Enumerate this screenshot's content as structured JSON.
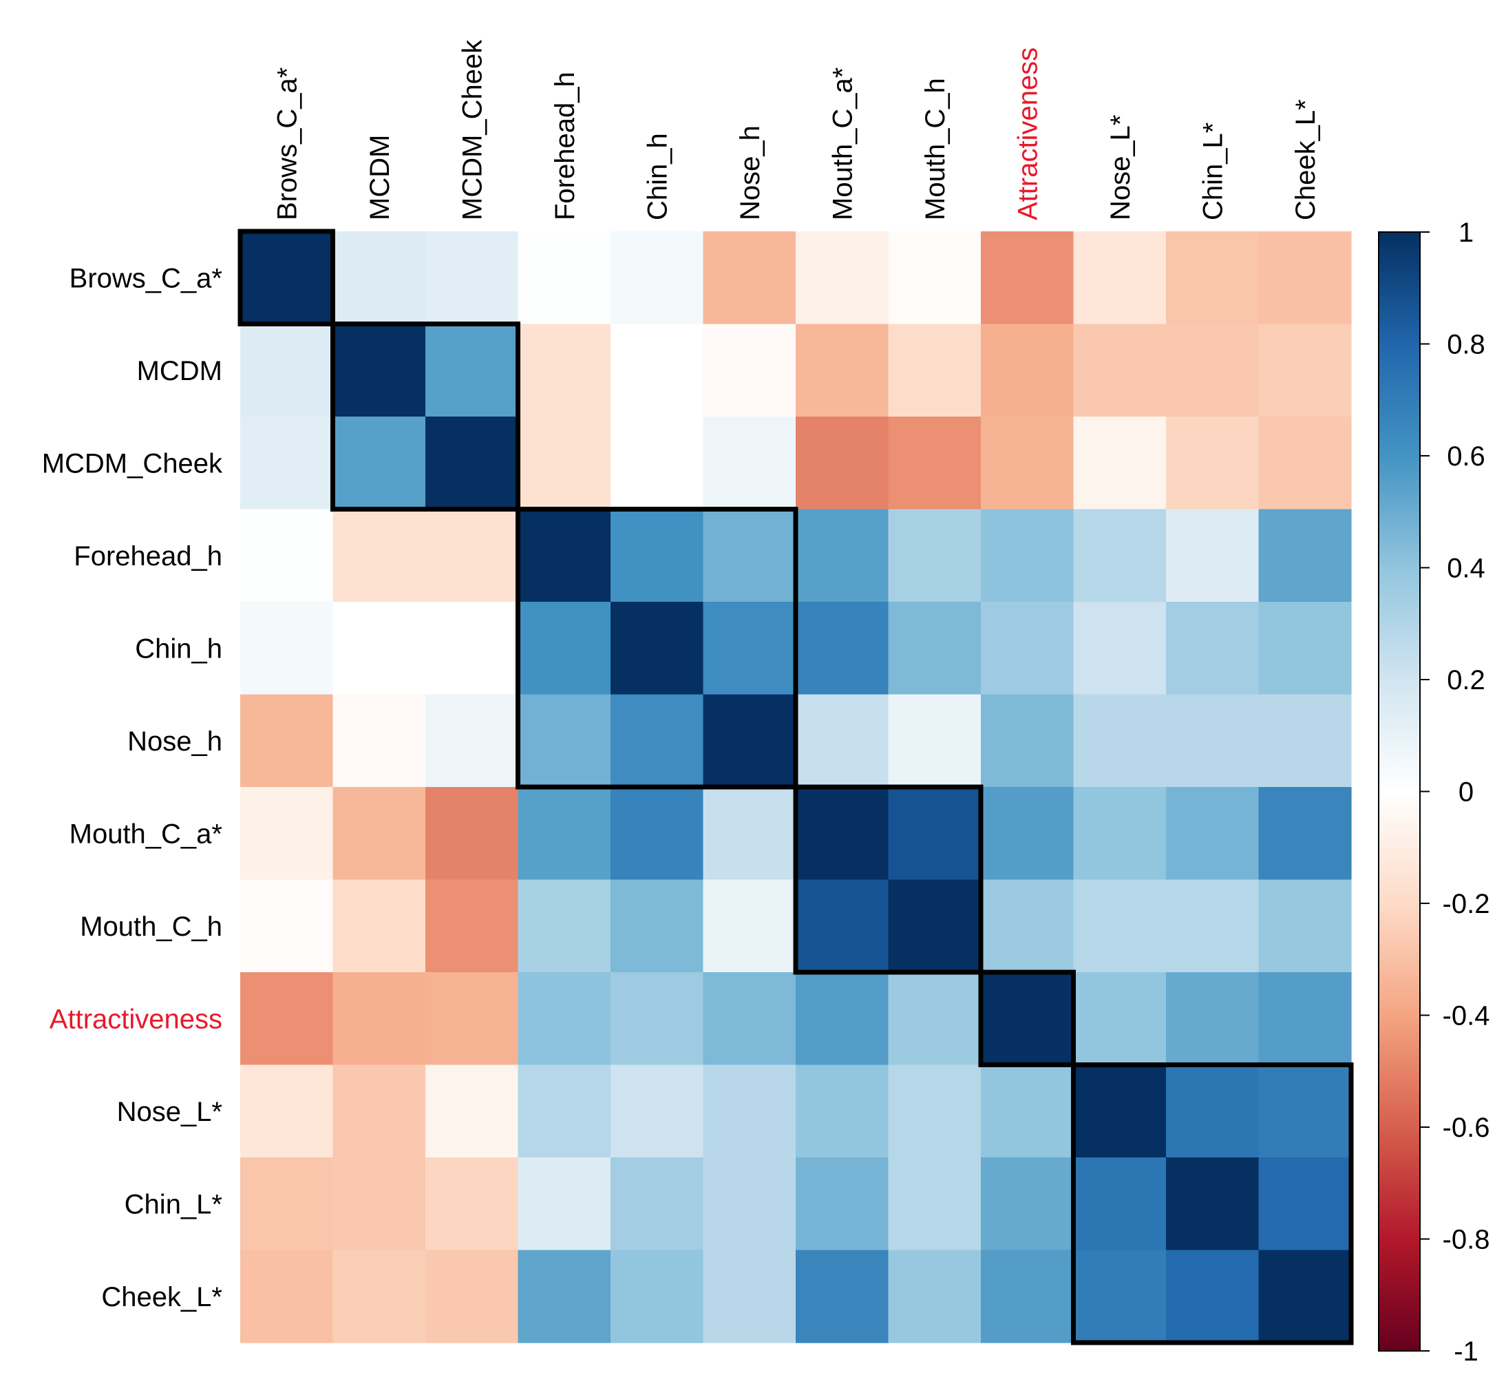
{
  "chart_data": {
    "type": "heatmap",
    "title": "",
    "variables": [
      "Brows_C_a*",
      "MCDM",
      "MCDM_Cheek",
      "Forehead_h",
      "Chin_h",
      "Nose_h",
      "Mouth_C_a*",
      "Mouth_C_h",
      "Attractiveness",
      "Nose_L*",
      "Chin_L*",
      "Cheek_L*"
    ],
    "highlighted_variable": "Attractiveness",
    "highlight_color": "#e8192c",
    "matrix": [
      [
        1.0,
        0.15,
        0.13,
        0.01,
        0.05,
        -0.33,
        -0.08,
        -0.02,
        -0.46,
        -0.14,
        -0.28,
        -0.3
      ],
      [
        0.15,
        1.0,
        0.55,
        -0.16,
        0.0,
        -0.03,
        -0.33,
        -0.19,
        -0.36,
        -0.27,
        -0.27,
        -0.25
      ],
      [
        0.13,
        0.55,
        1.0,
        -0.16,
        0.0,
        0.08,
        -0.5,
        -0.46,
        -0.35,
        -0.06,
        -0.22,
        -0.27
      ],
      [
        0.01,
        -0.16,
        -0.16,
        1.0,
        0.61,
        0.48,
        0.55,
        0.33,
        0.41,
        0.29,
        0.15,
        0.53
      ],
      [
        0.05,
        0.0,
        0.0,
        0.61,
        1.0,
        0.63,
        0.67,
        0.45,
        0.36,
        0.21,
        0.35,
        0.4
      ],
      [
        -0.33,
        -0.03,
        0.08,
        0.48,
        0.63,
        1.0,
        0.23,
        0.09,
        0.45,
        0.28,
        0.28,
        0.28
      ],
      [
        -0.08,
        -0.33,
        -0.5,
        0.55,
        0.67,
        0.23,
        1.0,
        0.87,
        0.56,
        0.4,
        0.47,
        0.66
      ],
      [
        -0.02,
        -0.19,
        -0.46,
        0.33,
        0.45,
        0.09,
        0.87,
        1.0,
        0.37,
        0.29,
        0.29,
        0.38
      ],
      [
        -0.46,
        -0.36,
        -0.35,
        0.41,
        0.36,
        0.45,
        0.56,
        0.37,
        1.0,
        0.4,
        0.51,
        0.56
      ],
      [
        -0.14,
        -0.27,
        -0.06,
        0.29,
        0.21,
        0.28,
        0.4,
        0.29,
        0.4,
        1.0,
        0.73,
        0.7
      ],
      [
        -0.28,
        -0.27,
        -0.22,
        0.15,
        0.35,
        0.28,
        0.47,
        0.29,
        0.51,
        0.73,
        1.0,
        0.78
      ],
      [
        -0.3,
        -0.25,
        -0.27,
        0.53,
        0.4,
        0.28,
        0.66,
        0.38,
        0.56,
        0.7,
        0.78,
        1.0
      ]
    ],
    "clusters": [
      {
        "start": 0,
        "size": 1
      },
      {
        "start": 1,
        "size": 2
      },
      {
        "start": 3,
        "size": 3
      },
      {
        "start": 6,
        "size": 2
      },
      {
        "start": 8,
        "size": 1
      },
      {
        "start": 9,
        "size": 3
      }
    ],
    "colorbar": {
      "min": -1,
      "max": 1,
      "ticks": [
        1,
        0.8,
        0.6,
        0.4,
        0.2,
        0,
        -0.2,
        -0.4,
        -0.6,
        -0.8,
        -1
      ],
      "tick_labels": [
        "1",
        "0.8",
        "0.6",
        "0.4",
        "0.2",
        "0",
        "-0.2",
        "-0.4",
        "-0.6",
        "-0.8",
        "-1"
      ],
      "colors": [
        "#67001f",
        "#b2182b",
        "#d6604d",
        "#f4a582",
        "#fddbc7",
        "#ffffff",
        "#d1e5f0",
        "#92c5de",
        "#4393c3",
        "#2166ac",
        "#053061"
      ]
    }
  }
}
